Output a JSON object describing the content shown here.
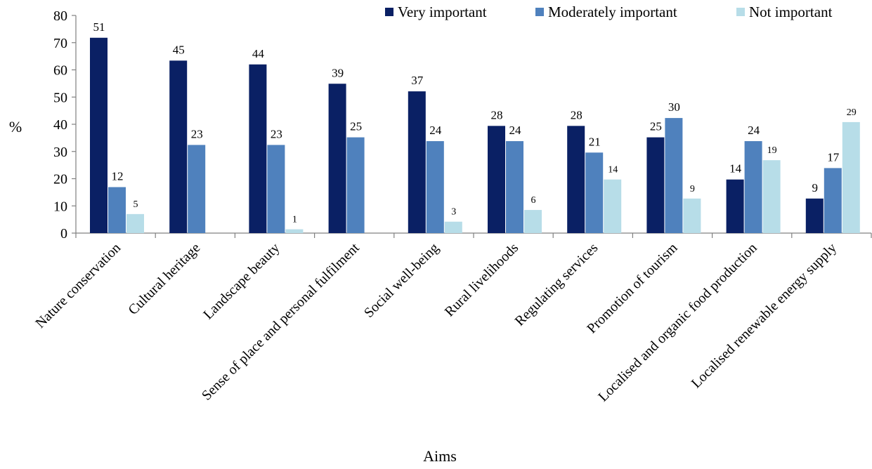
{
  "chart_data": {
    "type": "bar",
    "ylabel": "%",
    "xlabel": "Aims",
    "ylim": [
      0,
      80
    ],
    "yticks": [
      0,
      10,
      20,
      30,
      40,
      50,
      60,
      70,
      80
    ],
    "grid": false,
    "legend_position": "top-right",
    "categories": [
      "Nature conservation",
      "Cultural heritage",
      "Landscape beauty",
      "Sense of place and personal fulfilment",
      "Social well-being",
      "Rural livelihoods",
      "Regulating services",
      "Promotion of tourism",
      "Localised and organic food production",
      "Localised renewable energy supply"
    ],
    "series": [
      {
        "name": "Very important",
        "color": "#0a2064",
        "values": [
          71.8,
          63.4,
          62.0,
          54.9,
          52.1,
          39.4,
          39.4,
          35.2,
          19.7,
          12.7
        ],
        "labels": [
          "51",
          "45",
          "44",
          "39",
          "37",
          "28",
          "28",
          "25",
          "14",
          "9"
        ]
      },
      {
        "name": "Moderately important",
        "color": "#4f81bd",
        "values": [
          16.9,
          32.4,
          32.4,
          35.2,
          33.8,
          33.8,
          29.6,
          42.3,
          33.8,
          23.9
        ],
        "labels": [
          "12",
          "23",
          "23",
          "25",
          "24",
          "24",
          "21",
          "30",
          "24",
          "17"
        ]
      },
      {
        "name": "Not important",
        "color": "#b7dde8",
        "values": [
          7.0,
          0,
          1.4,
          0,
          4.2,
          8.5,
          19.7,
          12.7,
          26.8,
          40.8
        ],
        "labels": [
          "5",
          "",
          "1",
          "",
          "3",
          "6",
          "14",
          "9",
          "19",
          "29"
        ]
      }
    ]
  }
}
